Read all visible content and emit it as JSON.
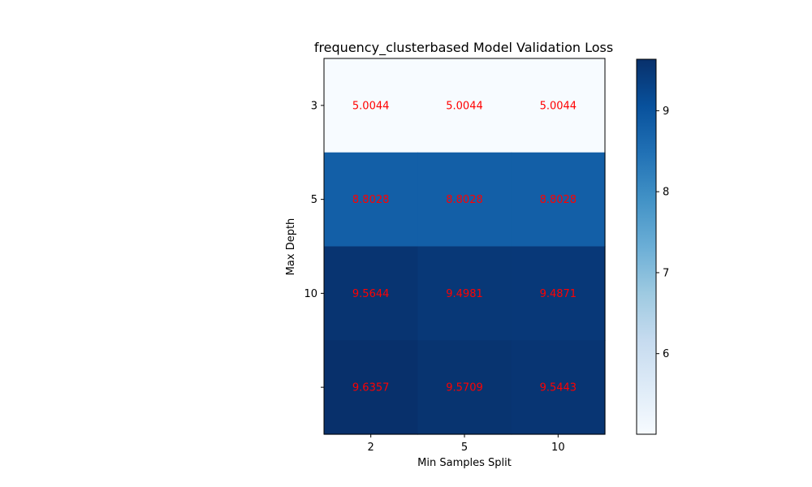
{
  "chart_data": {
    "type": "heatmap",
    "title": "frequency_clusterbased Model Validation Loss",
    "xlabel": "Min Samples Split",
    "ylabel": "Max Depth",
    "x_categories": [
      "2",
      "5",
      "10"
    ],
    "y_categories": [
      "3",
      "5",
      "10",
      ""
    ],
    "values": [
      [
        5.0044,
        5.0044,
        5.0044
      ],
      [
        8.8028,
        8.8028,
        8.8028
      ],
      [
        9.5644,
        9.4981,
        9.4871
      ],
      [
        9.6357,
        9.5709,
        9.5443
      ]
    ],
    "value_labels": [
      [
        "5.0044",
        "5.0044",
        "5.0044"
      ],
      [
        "8.8028",
        "8.8028",
        "8.8028"
      ],
      [
        "9.5644",
        "9.4981",
        "9.4871"
      ],
      [
        "9.6357",
        "9.5709",
        "9.5443"
      ]
    ],
    "colormap": "Blues",
    "colorbar": {
      "min": 5.0044,
      "max": 9.6357,
      "ticks": [
        6,
        7,
        8,
        9
      ]
    },
    "annotation_color": "#ff0000",
    "grid": false
  }
}
